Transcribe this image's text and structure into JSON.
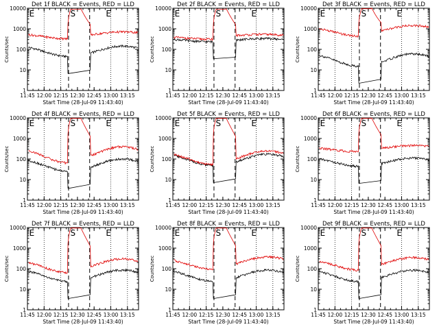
{
  "chart_data": [
    {
      "type": "line",
      "title": "Det 1f BLACK = Events, RED = LLD",
      "xlabel": "Start Time (28-Jul-09 11:43:40)",
      "ylabel": "Counts/sec",
      "yscale": "log",
      "ylim": [
        1,
        10000
      ],
      "xlim": [
        "11:45",
        "13:25"
      ],
      "x_ticks": [
        "11:45",
        "12:00",
        "12:15",
        "12:30",
        "12:45",
        "13:00",
        "13:15"
      ],
      "y_ticks": [
        "1",
        "10",
        "100",
        "1000",
        "10000"
      ],
      "region_labels": [
        "E",
        "S",
        "E"
      ],
      "dotted_lines": [
        "12:00",
        "12:15",
        "13:00",
        "13:15"
      ],
      "dashed_lines": [
        "12:22",
        "12:41"
      ],
      "series": [
        {
          "color": "#000000",
          "profile": "orbit",
          "base": 80,
          "amp": 1.8,
          "phase": 0.35,
          "peak": null
        },
        {
          "color": "#e00000",
          "profile": "flare",
          "base": 420,
          "amp": 1.3,
          "phase": 0.35,
          "peak": 9000
        }
      ]
    },
    {
      "type": "line",
      "title": "Det 2f BLACK = Events, RED = LLD",
      "xlabel": "Start Time (28-Jul-09 11:43:40)",
      "ylabel": "Counts/sec",
      "yscale": "log",
      "ylim": [
        1,
        10000
      ],
      "xlim": [
        "11:45",
        "13:25"
      ],
      "x_ticks": [
        "11:45",
        "12:00",
        "12:15",
        "12:30",
        "12:45",
        "13:00",
        "13:15"
      ],
      "y_ticks": [
        "1",
        "10",
        "100",
        "1000",
        "10000"
      ],
      "region_labels": [
        "E",
        "S",
        "E"
      ],
      "dotted_lines": [
        "12:00",
        "12:15",
        "13:00",
        "13:15"
      ],
      "dashed_lines": [
        "12:22",
        "12:41"
      ],
      "series": [
        {
          "color": "#000000",
          "profile": "orbit",
          "base": 280,
          "amp": 1.2,
          "phase": 0.4,
          "peak": null
        },
        {
          "color": "#e00000",
          "profile": "flare",
          "base": 360,
          "amp": 1.15,
          "phase": 0.4,
          "peak": 9000
        }
      ]
    },
    {
      "type": "line",
      "title": "Det 3f BLACK = Events, RED = LLD",
      "xlabel": "Start Time (28-Jul-09 11:43:40)",
      "ylabel": "Counts/sec",
      "yscale": "log",
      "ylim": [
        1,
        10000
      ],
      "xlim": [
        "11:45",
        "13:25"
      ],
      "x_ticks": [
        "11:45",
        "12:00",
        "12:15",
        "12:30",
        "12:45",
        "13:00",
        "13:15"
      ],
      "y_ticks": [
        "1",
        "10",
        "100",
        "1000",
        "10000"
      ],
      "region_labels": [
        "E",
        "S",
        "E"
      ],
      "dotted_lines": [
        "12:00",
        "12:15",
        "13:00",
        "13:15"
      ],
      "dashed_lines": [
        "12:22",
        "12:41"
      ],
      "series": [
        {
          "color": "#000000",
          "profile": "orbit",
          "base": 30,
          "amp": 2.0,
          "phase": 0.35,
          "peak": null
        },
        {
          "color": "#e00000",
          "profile": "flare",
          "base": 700,
          "amp": 1.6,
          "phase": 0.35,
          "peak": 9500
        }
      ]
    },
    {
      "type": "line",
      "title": "Det 4f BLACK = Events, RED = LLD",
      "xlabel": "Start Time (28-Jul-09 11:43:40)",
      "ylabel": "Counts/sec",
      "yscale": "log",
      "ylim": [
        1,
        10000
      ],
      "xlim": [
        "11:45",
        "13:25"
      ],
      "x_ticks": [
        "11:45",
        "12:00",
        "12:15",
        "12:30",
        "12:45",
        "13:00",
        "13:15"
      ],
      "y_ticks": [
        "1",
        "10",
        "100",
        "1000",
        "10000"
      ],
      "region_labels": [
        "E",
        "S",
        "E"
      ],
      "dotted_lines": [
        "12:00",
        "12:15",
        "13:00",
        "13:15"
      ],
      "dashed_lines": [
        "12:22",
        "12:41"
      ],
      "series": [
        {
          "color": "#000000",
          "profile": "orbit",
          "base": 50,
          "amp": 2.0,
          "phase": 0.35,
          "peak": null
        },
        {
          "color": "#e00000",
          "profile": "flare",
          "base": 140,
          "amp": 2.2,
          "phase": 0.35,
          "peak": 9500
        }
      ]
    },
    {
      "type": "line",
      "title": "Det 5f BLACK = Events, RED = LLD",
      "xlabel": "Start Time (28-Jul-09 11:43:40)",
      "ylabel": "Counts/sec",
      "yscale": "log",
      "ylim": [
        1,
        10000
      ],
      "xlim": [
        "11:45",
        "13:25"
      ],
      "x_ticks": [
        "11:45",
        "12:00",
        "12:15",
        "12:30",
        "12:45",
        "13:00",
        "13:15"
      ],
      "y_ticks": [
        "1",
        "10",
        "100",
        "1000",
        "10000"
      ],
      "region_labels": [
        "E",
        "S",
        "E"
      ],
      "dotted_lines": [
        "12:00",
        "12:15",
        "13:00",
        "13:15"
      ],
      "dashed_lines": [
        "12:22",
        "12:41"
      ],
      "series": [
        {
          "color": "#000000",
          "profile": "orbit",
          "base": 90,
          "amp": 1.9,
          "phase": 0.35,
          "peak": null
        },
        {
          "color": "#e00000",
          "profile": "flare",
          "base": 100,
          "amp": 1.9,
          "phase": 0.35,
          "peak": 9500
        }
      ]
    },
    {
      "type": "line",
      "title": "Det 6f BLACK = Events, RED = LLD",
      "xlabel": "Start Time (28-Jul-09 11:43:40)",
      "ylabel": "Counts/sec",
      "yscale": "log",
      "ylim": [
        1,
        10000
      ],
      "xlim": [
        "11:45",
        "13:25"
      ],
      "x_ticks": [
        "11:45",
        "12:00",
        "12:15",
        "12:30",
        "12:45",
        "13:00",
        "13:15"
      ],
      "y_ticks": [
        "1",
        "10",
        "100",
        "1000",
        "10000"
      ],
      "region_labels": [
        "E",
        "S",
        "E"
      ],
      "dotted_lines": [
        "12:00",
        "12:15",
        "13:00",
        "13:15"
      ],
      "dashed_lines": [
        "12:22",
        "12:41"
      ],
      "series": [
        {
          "color": "#000000",
          "profile": "orbit",
          "base": 70,
          "amp": 1.6,
          "phase": 0.35,
          "peak": null
        },
        {
          "color": "#e00000",
          "profile": "flare",
          "base": 280,
          "amp": 1.25,
          "phase": 0.35,
          "peak": 9500
        }
      ]
    },
    {
      "type": "line",
      "title": "Det 7f BLACK = Events, RED = LLD",
      "xlabel": "Start Time (28-Jul-09 11:43:40)",
      "ylabel": "Counts/sec",
      "yscale": "log",
      "ylim": [
        1,
        10000
      ],
      "xlim": [
        "11:45",
        "13:25"
      ],
      "x_ticks": [
        "11:45",
        "12:00",
        "12:15",
        "12:30",
        "12:45",
        "13:00",
        "13:15"
      ],
      "y_ticks": [
        "1",
        "10",
        "100",
        "1000",
        "10000"
      ],
      "region_labels": [
        "E",
        "S",
        "E"
      ],
      "dotted_lines": [
        "12:00",
        "12:15",
        "13:00",
        "13:15"
      ],
      "dashed_lines": [
        "12:22",
        "12:41"
      ],
      "series": [
        {
          "color": "#000000",
          "profile": "orbit",
          "base": 45,
          "amp": 1.9,
          "phase": 0.35,
          "peak": null
        },
        {
          "color": "#e00000",
          "profile": "flare",
          "base": 120,
          "amp": 1.9,
          "phase": 0.35,
          "peak": 9500
        }
      ]
    },
    {
      "type": "line",
      "title": "Det 8f BLACK = Events, RED = LLD",
      "xlabel": "Start Time (28-Jul-09 11:43:40)",
      "ylabel": "Counts/sec",
      "yscale": "log",
      "ylim": [
        1,
        10000
      ],
      "xlim": [
        "11:45",
        "13:25"
      ],
      "x_ticks": [
        "11:45",
        "12:00",
        "12:15",
        "12:30",
        "12:45",
        "13:00",
        "13:15"
      ],
      "y_ticks": [
        "1",
        "10",
        "100",
        "1000",
        "10000"
      ],
      "region_labels": [
        "E",
        "S",
        "E"
      ],
      "dotted_lines": [
        "12:00",
        "12:15",
        "13:00",
        "13:15"
      ],
      "dashed_lines": [
        "12:22",
        "12:41"
      ],
      "series": [
        {
          "color": "#000000",
          "profile": "orbit",
          "base": 45,
          "amp": 1.9,
          "phase": 0.35,
          "peak": null
        },
        {
          "color": "#e00000",
          "profile": "flare",
          "base": 160,
          "amp": 1.8,
          "phase": 0.35,
          "peak": 9500
        }
      ]
    },
    {
      "type": "line",
      "title": "Det 9f BLACK = Events, RED = LLD",
      "xlabel": "Start Time (28-Jul-09 11:43:40)",
      "ylabel": "Counts/sec",
      "yscale": "log",
      "ylim": [
        1,
        10000
      ],
      "xlim": [
        "11:45",
        "13:25"
      ],
      "x_ticks": [
        "11:45",
        "12:00",
        "12:15",
        "12:30",
        "12:45",
        "13:00",
        "13:15"
      ],
      "y_ticks": [
        "1",
        "10",
        "100",
        "1000",
        "10000"
      ],
      "region_labels": [
        "E",
        "S",
        "E"
      ],
      "dotted_lines": [
        "12:00",
        "12:15",
        "13:00",
        "13:15"
      ],
      "dashed_lines": [
        "12:22",
        "12:41"
      ],
      "series": [
        {
          "color": "#000000",
          "profile": "orbit",
          "base": 45,
          "amp": 1.9,
          "phase": 0.35,
          "peak": null
        },
        {
          "color": "#e00000",
          "profile": "flare",
          "base": 150,
          "amp": 1.8,
          "phase": 0.35,
          "peak": 9500
        }
      ]
    }
  ]
}
